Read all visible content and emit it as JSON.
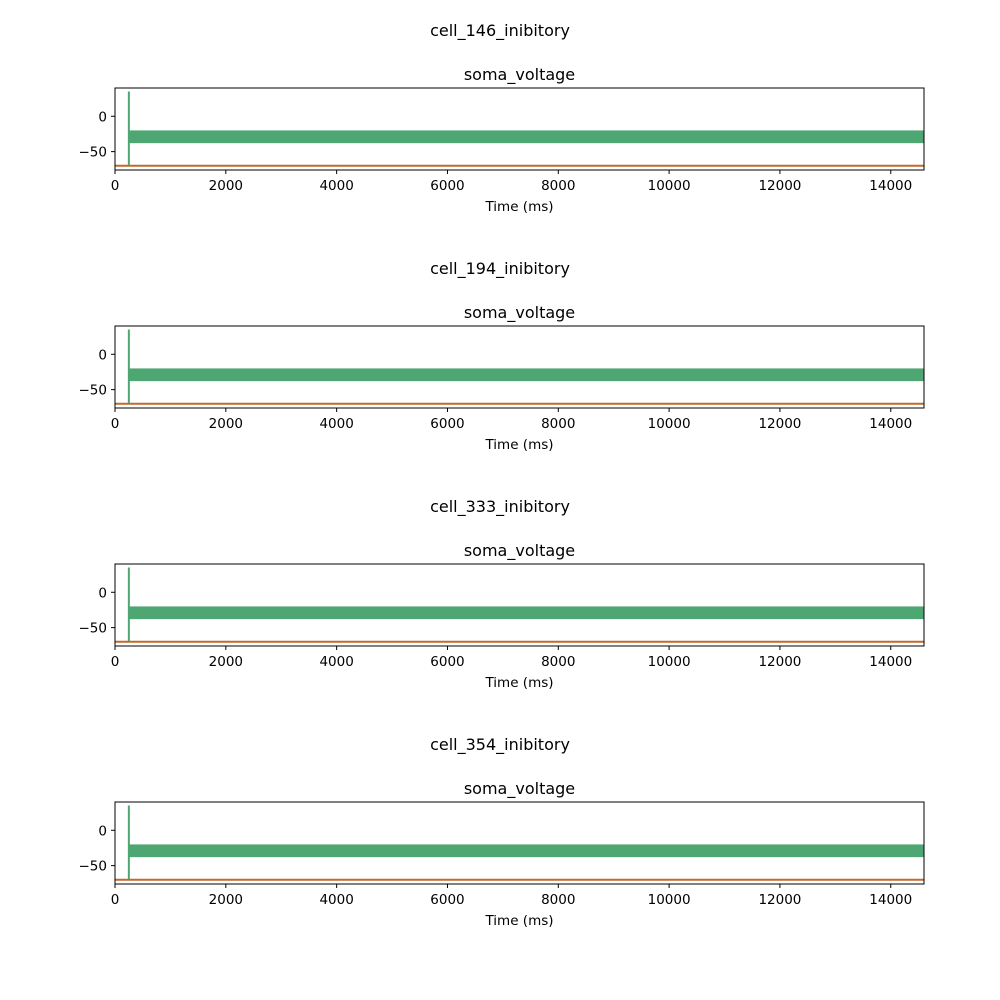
{
  "figure": {
    "panels_title_note": "",
    "colors": {
      "voltage": "#4ea672",
      "baseline": "#c06a2b",
      "axes": "#000000"
    }
  },
  "chart_data": [
    {
      "type": "line",
      "suptitle": "cell_146_inibitory",
      "title": "soma_voltage",
      "xlabel": "Time (ms)",
      "ylabel": "",
      "xlim": [
        0,
        14600
      ],
      "ylim": [
        -76,
        40
      ],
      "x_ticks": [
        0,
        2000,
        4000,
        6000,
        8000,
        10000,
        12000,
        14000
      ],
      "y_ticks": [
        0,
        -50
      ],
      "grid": false,
      "series": [
        {
          "role": "voltage",
          "spike_time": 250,
          "spike_peak": 35,
          "spike_trough": -70,
          "band_start": 250,
          "band_end": 14600,
          "band_low": -38,
          "band_high": -20
        },
        {
          "role": "baseline",
          "x": [
            0,
            14600
          ],
          "y": [
            -70,
            -70
          ]
        }
      ]
    },
    {
      "type": "line",
      "suptitle": "cell_194_inibitory",
      "title": "soma_voltage",
      "xlabel": "Time (ms)",
      "ylabel": "",
      "xlim": [
        0,
        14600
      ],
      "ylim": [
        -76,
        40
      ],
      "x_ticks": [
        0,
        2000,
        4000,
        6000,
        8000,
        10000,
        12000,
        14000
      ],
      "y_ticks": [
        0,
        -50
      ],
      "grid": false,
      "series": [
        {
          "role": "voltage",
          "spike_time": 250,
          "spike_peak": 35,
          "spike_trough": -70,
          "band_start": 250,
          "band_end": 14600,
          "band_low": -38,
          "band_high": -20
        },
        {
          "role": "baseline",
          "x": [
            0,
            14600
          ],
          "y": [
            -70,
            -70
          ]
        }
      ]
    },
    {
      "type": "line",
      "suptitle": "cell_333_inibitory",
      "title": "soma_voltage",
      "xlabel": "Time (ms)",
      "ylabel": "",
      "xlim": [
        0,
        14600
      ],
      "ylim": [
        -76,
        40
      ],
      "x_ticks": [
        0,
        2000,
        4000,
        6000,
        8000,
        10000,
        12000,
        14000
      ],
      "y_ticks": [
        0,
        -50
      ],
      "grid": false,
      "series": [
        {
          "role": "voltage",
          "spike_time": 250,
          "spike_peak": 35,
          "spike_trough": -70,
          "band_start": 250,
          "band_end": 14600,
          "band_low": -38,
          "band_high": -20
        },
        {
          "role": "baseline",
          "x": [
            0,
            14600
          ],
          "y": [
            -70,
            -70
          ]
        }
      ]
    },
    {
      "type": "line",
      "suptitle": "cell_354_inibitory",
      "title": "soma_voltage",
      "xlabel": "Time (ms)",
      "ylabel": "",
      "xlim": [
        0,
        14600
      ],
      "ylim": [
        -76,
        40
      ],
      "x_ticks": [
        0,
        2000,
        4000,
        6000,
        8000,
        10000,
        12000,
        14000
      ],
      "y_ticks": [
        0,
        -50
      ],
      "grid": false,
      "series": [
        {
          "role": "voltage",
          "spike_time": 250,
          "spike_peak": 35,
          "spike_trough": -70,
          "band_start": 250,
          "band_end": 14600,
          "band_low": -38,
          "band_high": -20
        },
        {
          "role": "baseline",
          "x": [
            0,
            14600
          ],
          "y": [
            -70,
            -70
          ]
        }
      ]
    }
  ]
}
